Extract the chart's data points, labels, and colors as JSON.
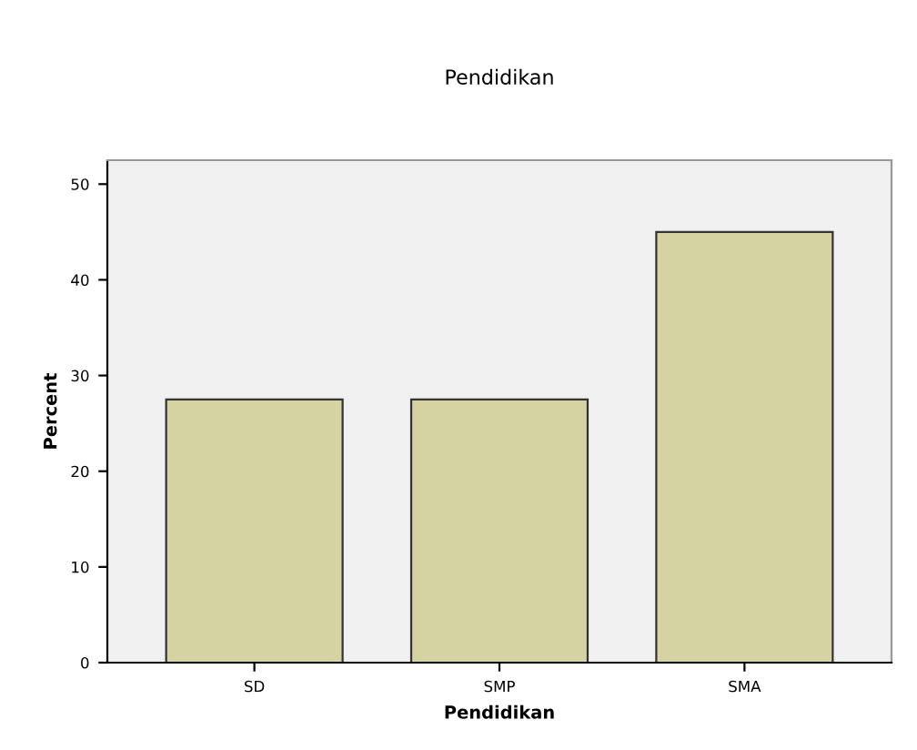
{
  "chart_data": {
    "type": "bar",
    "title": "Pendidikan",
    "xlabel": "Pendidikan",
    "ylabel": "Percent",
    "categories": [
      "SD",
      "SMP",
      "SMA"
    ],
    "values": [
      27.5,
      27.5,
      45.0
    ],
    "color": "#d6d3a3",
    "ylim": [
      0,
      52.5
    ],
    "yticks": [
      0,
      10,
      20,
      30,
      40,
      50
    ],
    "grid": false,
    "legend": false
  }
}
